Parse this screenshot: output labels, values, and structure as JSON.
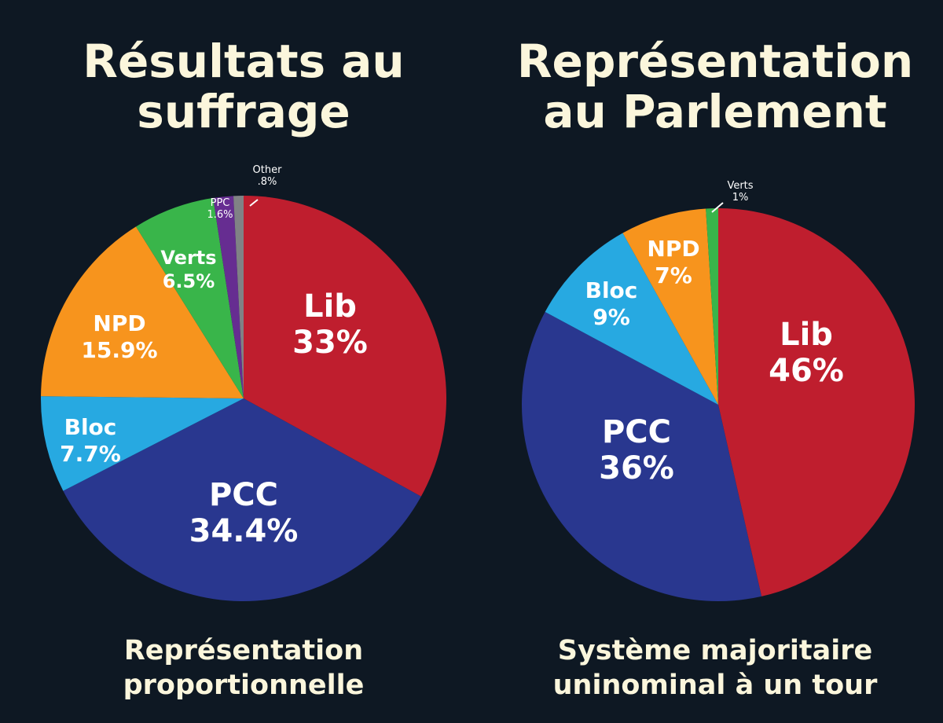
{
  "chart_data": [
    {
      "type": "pie",
      "title_lines": [
        "Résultats au",
        "suffrage"
      ],
      "subtitle_lines": [
        "Représentation",
        "proportionnelle"
      ],
      "slices": [
        {
          "name": "Lib",
          "label": "33%",
          "value": 33.0,
          "color": "#bf1e2e"
        },
        {
          "name": "PCC",
          "label": "34.4%",
          "value": 34.4,
          "color": "#29378f"
        },
        {
          "name": "Bloc",
          "label": "7.7%",
          "value": 7.7,
          "color": "#27a9e1"
        },
        {
          "name": "NPD",
          "label": "15.9%",
          "value": 15.9,
          "color": "#f7941d"
        },
        {
          "name": "Verts",
          "label": "6.5%",
          "value": 6.5,
          "color": "#39b54a"
        },
        {
          "name": "PPC",
          "label": "1.6%",
          "value": 1.6,
          "color": "#662d91"
        },
        {
          "name": "Other",
          "label": ".8%",
          "value": 0.8,
          "color": "#808285"
        }
      ]
    },
    {
      "type": "pie",
      "title_lines": [
        "Représentation",
        "au Parlement"
      ],
      "subtitle_lines": [
        "Système majoritaire",
        "uninominal à un tour"
      ],
      "slices": [
        {
          "name": "Lib",
          "label": "46%",
          "value": 46,
          "color": "#bf1e2e"
        },
        {
          "name": "PCC",
          "label": "36%",
          "value": 36,
          "color": "#29378f"
        },
        {
          "name": "Bloc",
          "label": "9%",
          "value": 9,
          "color": "#27a9e1"
        },
        {
          "name": "NPD",
          "label": "7%",
          "value": 7,
          "color": "#f7941d"
        },
        {
          "name": "Verts",
          "label": "1%",
          "value": 1,
          "color": "#39b54a"
        }
      ]
    }
  ]
}
